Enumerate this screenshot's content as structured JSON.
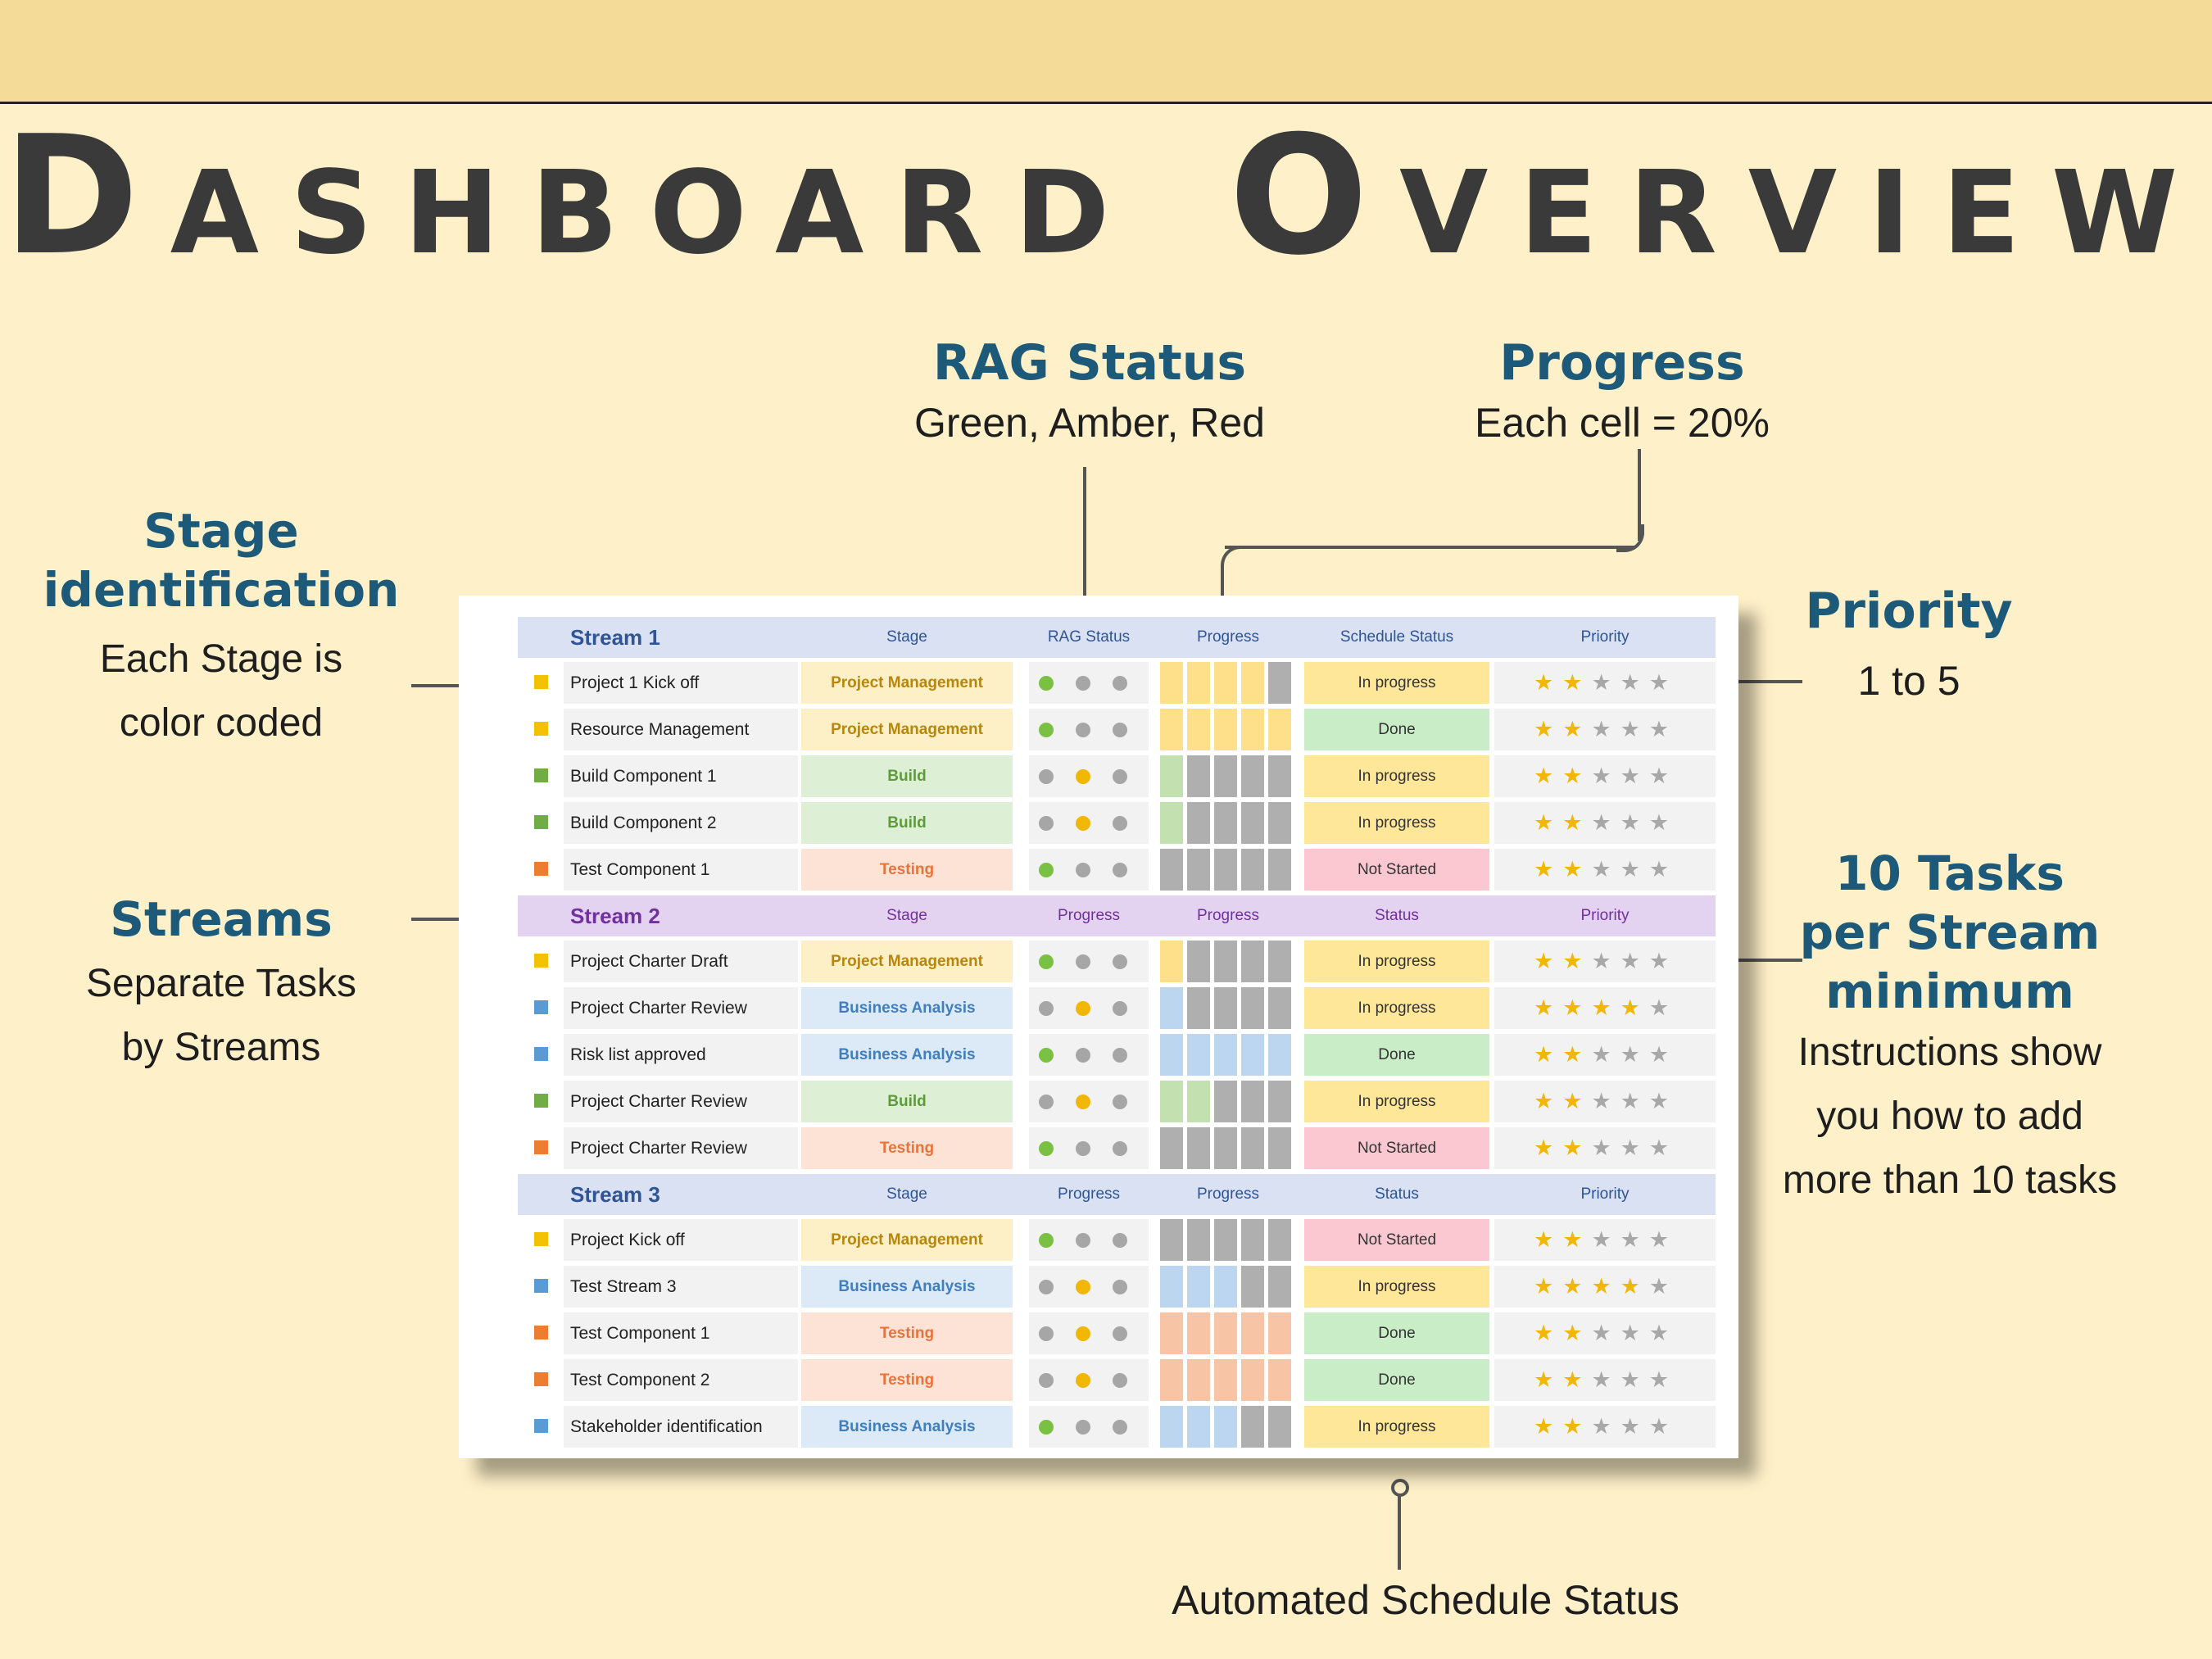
{
  "title": "Dashboard Overview",
  "annotations": {
    "rag": {
      "heading": "RAG Status",
      "sub": "Green, Amber, Red"
    },
    "progress": {
      "heading": "Progress",
      "sub": "Each cell = 20%"
    },
    "stage": {
      "heading1": "Stage",
      "heading2": "identification",
      "sub1": "Each Stage is",
      "sub2": "color coded"
    },
    "priority": {
      "heading": "Priority",
      "sub": "1 to 5"
    },
    "streams": {
      "heading": "Streams",
      "sub1": "Separate Tasks",
      "sub2": "by Streams"
    },
    "tasks": {
      "heading1": "10 Tasks",
      "heading2": "per Stream",
      "heading3": "minimum",
      "sub1": "Instructions show",
      "sub2": "you how to add",
      "sub3": "more than 10 tasks"
    },
    "schedule": {
      "sub": "Automated Schedule Status"
    }
  },
  "colors": {
    "green": "#7AC143",
    "amber": "#F2B705",
    "grey": "#A6A6A6",
    "pm": "#F2C200",
    "build": "#70AD47",
    "testing": "#ED7D31",
    "ba": "#5B9BD5"
  },
  "streams": [
    {
      "header": {
        "title": "Stream 1",
        "stage": "Stage",
        "rag": "RAG Status",
        "progress": "Progress",
        "status": "Schedule Status",
        "priority": "Priority"
      },
      "rows": [
        {
          "task": "Project 1 Kick off",
          "stage": "Project Management",
          "stage_type": "pm",
          "rag": "green",
          "progress": 4,
          "status": "In progress",
          "priority": 2
        },
        {
          "task": "Resource Management",
          "stage": "Project Management",
          "stage_type": "pm",
          "rag": "green",
          "progress": 5,
          "status": "Done",
          "priority": 2
        },
        {
          "task": "Build Component 1",
          "stage": "Build",
          "stage_type": "build",
          "rag": "amber",
          "progress": 1,
          "status": "In progress",
          "priority": 2
        },
        {
          "task": "Build Component 2",
          "stage": "Build",
          "stage_type": "build",
          "rag": "amber",
          "progress": 1,
          "status": "In progress",
          "priority": 2
        },
        {
          "task": "Test Component 1",
          "stage": "Testing",
          "stage_type": "testing",
          "rag": "green",
          "progress": 0,
          "status": "Not Started",
          "priority": 2
        }
      ]
    },
    {
      "header": {
        "title": "Stream 2",
        "stage": "Stage",
        "rag": "Progress",
        "progress": "Progress",
        "status": "Status",
        "priority": "Priority"
      },
      "rows": [
        {
          "task": "Project Charter Draft",
          "stage": "Project Management",
          "stage_type": "pm",
          "rag": "green",
          "progress": 1,
          "status": "In progress",
          "priority": 2
        },
        {
          "task": "Project Charter Review",
          "stage": "Business Analysis",
          "stage_type": "ba",
          "rag": "amber",
          "progress": 1,
          "status": "In progress",
          "priority": 4
        },
        {
          "task": "Risk list approved",
          "stage": "Business Analysis",
          "stage_type": "ba",
          "rag": "green",
          "progress": 5,
          "status": "Done",
          "priority": 2
        },
        {
          "task": "Project Charter Review",
          "stage": "Build",
          "stage_type": "build",
          "rag": "amber",
          "progress": 2,
          "status": "In progress",
          "priority": 2
        },
        {
          "task": "Project Charter Review",
          "stage": "Testing",
          "stage_type": "testing",
          "rag": "green",
          "progress": 0,
          "status": "Not Started",
          "priority": 2
        }
      ]
    },
    {
      "header": {
        "title": "Stream 3",
        "stage": "Stage",
        "rag": "Progress",
        "progress": "Progress",
        "status": "Status",
        "priority": "Priority"
      },
      "rows": [
        {
          "task": "Project Kick off",
          "stage": "Project Management",
          "stage_type": "pm",
          "rag": "green",
          "progress": 0,
          "status": "Not Started",
          "priority": 2
        },
        {
          "task": "Test Stream 3",
          "stage": "Business Analysis",
          "stage_type": "ba",
          "rag": "amber",
          "progress": 3,
          "status": "In progress",
          "priority": 4
        },
        {
          "task": "Test Component 1",
          "stage": "Testing",
          "stage_type": "testing",
          "rag": "amber",
          "progress": 5,
          "status": "Done",
          "priority": 2
        },
        {
          "task": "Test Component 2",
          "stage": "Testing",
          "stage_type": "testing",
          "rag": "amber",
          "progress": 5,
          "status": "Done",
          "priority": 2
        },
        {
          "task": "Stakeholder identification",
          "stage": "Business Analysis",
          "stage_type": "ba",
          "rag": "green",
          "progress": 3,
          "status": "In progress",
          "priority": 2
        }
      ]
    }
  ]
}
